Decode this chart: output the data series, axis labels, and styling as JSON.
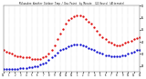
{
  "title": "Milwaukee Weather Outdoor Temp / Dew Point  by Minute  (24 Hours) (Alternate)",
  "bg_color": "#ffffff",
  "plot_bg": "#ffffff",
  "grid_color": "#aaaaaa",
  "temp_color": "#dd0000",
  "dew_color": "#0000cc",
  "ylim": [
    20,
    75
  ],
  "xlim": [
    0,
    1440
  ],
  "ylabel_right_ticks": [
    25,
    35,
    45,
    55,
    65,
    75
  ],
  "ylabel_right_labels": [
    "25",
    "35",
    "45",
    "55",
    "65",
    "75"
  ],
  "x_tick_positions": [
    0,
    60,
    120,
    180,
    240,
    300,
    360,
    420,
    480,
    540,
    600,
    660,
    720,
    780,
    840,
    900,
    960,
    1020,
    1080,
    1140,
    1200,
    1260,
    1320,
    1380,
    1440
  ],
  "x_tick_labels": [
    "12",
    "1",
    "2",
    "3",
    "4",
    "5",
    "6",
    "7",
    "8",
    "9",
    "10",
    "11",
    "12",
    "1",
    "2",
    "3",
    "4",
    "5",
    "6",
    "7",
    "8",
    "9",
    "10",
    "11",
    "12"
  ],
  "temp_x": [
    0,
    30,
    60,
    90,
    120,
    150,
    180,
    210,
    240,
    270,
    300,
    330,
    360,
    390,
    420,
    450,
    480,
    510,
    540,
    570,
    600,
    630,
    660,
    690,
    720,
    750,
    780,
    810,
    840,
    870,
    900,
    930,
    960,
    990,
    1020,
    1050,
    1080,
    1110,
    1140,
    1170,
    1200,
    1230,
    1260,
    1290,
    1320,
    1350,
    1380,
    1410,
    1440
  ],
  "temp_y": [
    38,
    37,
    36,
    35,
    34,
    33,
    33,
    32,
    32,
    32,
    31,
    31,
    31,
    31,
    32,
    33,
    35,
    38,
    42,
    47,
    52,
    56,
    60,
    63,
    65,
    66,
    67,
    67,
    66,
    64,
    62,
    60,
    57,
    54,
    51,
    49,
    47,
    45,
    44,
    43,
    42,
    42,
    43,
    44,
    45,
    46,
    47,
    48,
    49
  ],
  "dew_x": [
    0,
    30,
    60,
    90,
    120,
    150,
    180,
    210,
    240,
    270,
    300,
    330,
    360,
    390,
    420,
    450,
    480,
    510,
    540,
    570,
    600,
    630,
    660,
    690,
    720,
    750,
    780,
    810,
    840,
    870,
    900,
    930,
    960,
    990,
    1020,
    1050,
    1080,
    1110,
    1140,
    1170,
    1200,
    1230,
    1260,
    1290,
    1320,
    1350,
    1380,
    1410,
    1440
  ],
  "dew_y": [
    22,
    22,
    22,
    22,
    22,
    22,
    23,
    23,
    23,
    24,
    24,
    25,
    25,
    26,
    27,
    28,
    30,
    32,
    34,
    36,
    38,
    39,
    40,
    41,
    42,
    43,
    43,
    43,
    42,
    41,
    40,
    39,
    38,
    37,
    36,
    35,
    34,
    34,
    33,
    33,
    33,
    33,
    34,
    34,
    35,
    36,
    37,
    38,
    38
  ]
}
